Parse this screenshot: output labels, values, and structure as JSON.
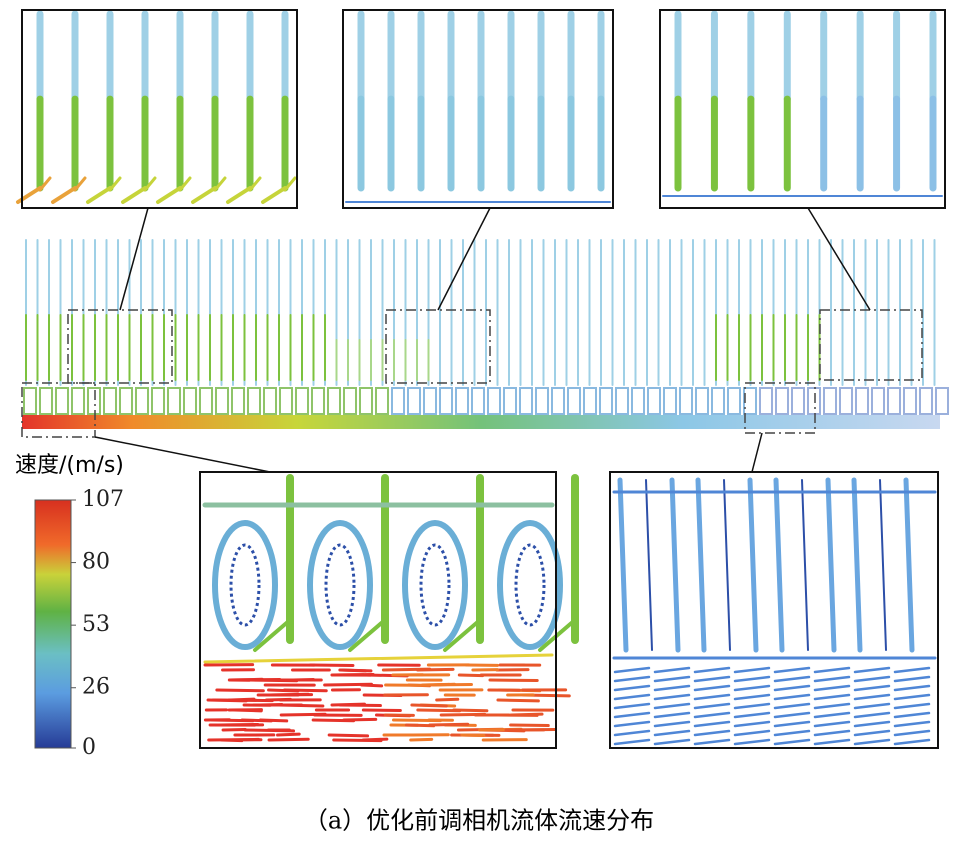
{
  "colorbar": {
    "label": "速度/(m/s)",
    "lim": [
      0,
      107
    ],
    "ticks": [
      0,
      26,
      53,
      80,
      107
    ]
  },
  "caption": "（a）优化前调相机流体流速分布"
}
